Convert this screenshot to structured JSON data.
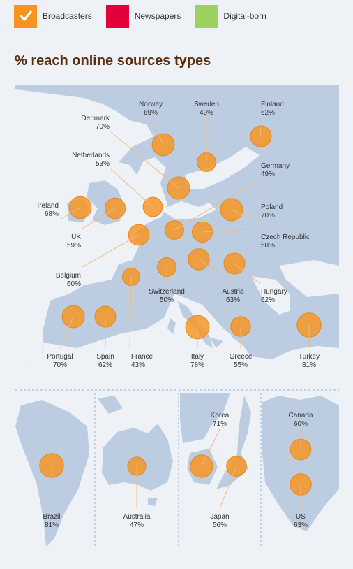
{
  "legend": [
    {
      "label": "Broadcasters",
      "color": "#f7941d",
      "checked": true
    },
    {
      "label": "Newspapers",
      "color": "#e4003b",
      "checked": false
    },
    {
      "label": "Digital-born",
      "color": "#9bd15c",
      "checked": false
    }
  ],
  "title": "% reach online sources types",
  "colors": {
    "bubble": "#f7941d",
    "land": "#bccde1",
    "sea": "#eef2f7",
    "title": "#5a2d0c",
    "leader": "#f3b97a"
  },
  "countries": [
    {
      "id": "norway",
      "name": "Norway",
      "value": "69%",
      "reach": 69
    },
    {
      "id": "sweden",
      "name": "Sweden",
      "value": "49%",
      "reach": 49
    },
    {
      "id": "finland",
      "name": "Finland",
      "value": "62%",
      "reach": 62
    },
    {
      "id": "denmark",
      "name": "Denmark",
      "value": "70%",
      "reach": 70
    },
    {
      "id": "netherlands",
      "name": "Netherlands",
      "value": "53%",
      "reach": 53
    },
    {
      "id": "germany",
      "name": "Germany",
      "value": "49%",
      "reach": 49
    },
    {
      "id": "ireland",
      "name": "Ireland",
      "value": "68%",
      "reach": 68
    },
    {
      "id": "uk",
      "name": "UK",
      "value": "59%",
      "reach": 59
    },
    {
      "id": "poland",
      "name": "Poland",
      "value": "70%",
      "reach": 70
    },
    {
      "id": "czech",
      "name": "Czech Republic",
      "value": "58%",
      "reach": 58
    },
    {
      "id": "belgium",
      "name": "Belgium",
      "value": "60%",
      "reach": 60
    },
    {
      "id": "switzerland",
      "name": "Switzerland",
      "value": "50%",
      "reach": 50
    },
    {
      "id": "austria",
      "name": "Austria",
      "value": "63%",
      "reach": 63
    },
    {
      "id": "hungary",
      "name": "Hungary",
      "value": "62%",
      "reach": 62
    },
    {
      "id": "portugal",
      "name": "Portugal",
      "value": "70%",
      "reach": 70
    },
    {
      "id": "spain",
      "name": "Spain",
      "value": "62%",
      "reach": 62
    },
    {
      "id": "france",
      "name": "France",
      "value": "43%",
      "reach": 43
    },
    {
      "id": "italy",
      "name": "Italy",
      "value": "78%",
      "reach": 78
    },
    {
      "id": "greece",
      "name": "Greece",
      "value": "55%",
      "reach": 55
    },
    {
      "id": "turkey",
      "name": "Turkey",
      "value": "81%",
      "reach": 81
    },
    {
      "id": "brazil",
      "name": "Brazil",
      "value": "81%",
      "reach": 81
    },
    {
      "id": "australia",
      "name": "Australia",
      "value": "47%",
      "reach": 47
    },
    {
      "id": "korea",
      "name": "Korea",
      "value": "71%",
      "reach": 71
    },
    {
      "id": "japan",
      "name": "Japan",
      "value": "56%",
      "reach": 56
    },
    {
      "id": "canada",
      "name": "Canada",
      "value": "60%",
      "reach": 60
    },
    {
      "id": "us",
      "name": "US",
      "value": "63%",
      "reach": 63
    }
  ]
}
